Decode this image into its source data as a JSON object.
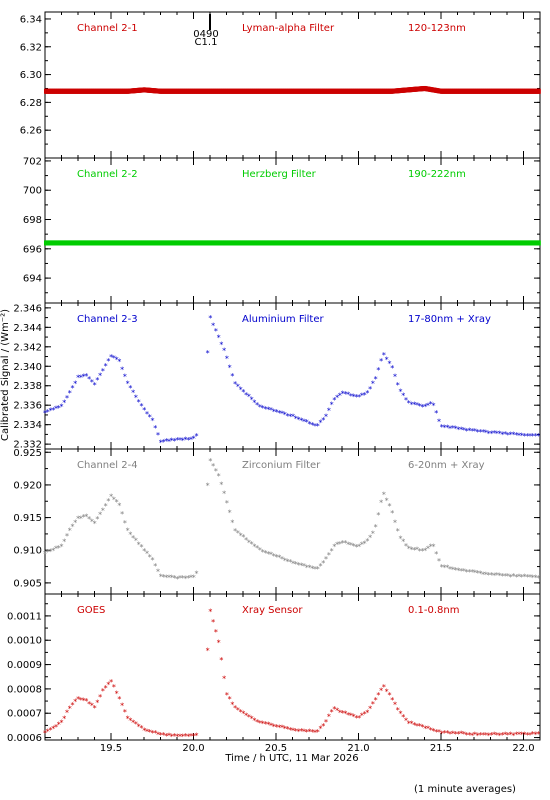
{
  "figure": {
    "ylabel": "Calibrated Signal / (Wm⁻²)",
    "xlabel": "Time / h UTC, 11 Mar 2026",
    "footnote": "(1 minute averages)",
    "flare_marker": {
      "time_label": "0490",
      "class_label": "C1.1",
      "x": 20.1
    }
  },
  "chart_data": [
    {
      "type": "scatter",
      "labels": {
        "channel": "Channel 2-1",
        "filter": "Lyman-alpha Filter",
        "band": "120-123nm"
      },
      "color": "#cc0000",
      "xlim": [
        19.1,
        22.1
      ],
      "ylim": [
        6.24,
        6.345
      ],
      "yticks": [
        "6.34",
        "6.32",
        "6.30",
        "6.28",
        "6.26"
      ],
      "ytick_values": [
        6.34,
        6.32,
        6.3,
        6.28,
        6.26
      ],
      "marker": "band",
      "series": [
        {
          "x": [
            19.1,
            19.6,
            19.7,
            19.8,
            21.2,
            21.4,
            21.45,
            21.5,
            22.1
          ],
          "y": [
            6.288,
            6.288,
            6.289,
            6.288,
            6.288,
            6.29,
            6.289,
            6.288,
            6.288
          ]
        }
      ]
    },
    {
      "type": "scatter",
      "labels": {
        "channel": "Channel 2-2",
        "filter": "Herzberg Filter",
        "band": "190-222nm"
      },
      "color": "#00cc00",
      "xlim": [
        19.1,
        22.1
      ],
      "ylim": [
        692.3,
        702.2
      ],
      "yticks": [
        "702",
        "700",
        "698",
        "696",
        "694"
      ],
      "ytick_values": [
        702,
        700,
        698,
        696,
        694
      ],
      "marker": "band",
      "series": [
        {
          "x": [
            19.1,
            20.0,
            20.5,
            21.0,
            21.5,
            22.1
          ],
          "y": [
            696.4,
            696.4,
            696.4,
            696.4,
            696.4,
            696.4
          ]
        }
      ]
    },
    {
      "type": "scatter",
      "labels": {
        "channel": "Channel 2-3",
        "filter": "Aluminium Filter",
        "band": "17-80nm + Xray"
      },
      "color": "#0000cc",
      "xlim": [
        19.1,
        22.1
      ],
      "ylim": [
        2.3315,
        2.3465
      ],
      "yticks": [
        "2.346",
        "2.344",
        "2.342",
        "2.340",
        "2.338",
        "2.336",
        "2.334",
        "2.332"
      ],
      "ytick_values": [
        2.346,
        2.344,
        2.342,
        2.34,
        2.338,
        2.336,
        2.334,
        2.332
      ],
      "marker": "star",
      "series": [
        {
          "x": [
            19.1,
            19.2,
            19.25,
            19.3,
            19.35,
            19.4,
            19.45,
            19.5,
            19.55,
            19.6,
            19.7,
            19.75,
            19.8,
            19.9,
            20.0,
            20.05,
            20.08,
            20.1,
            20.15,
            20.2,
            20.25,
            20.4,
            20.6,
            20.75,
            20.8,
            20.85,
            20.9,
            21.0,
            21.05,
            21.1,
            21.15,
            21.2,
            21.25,
            21.3,
            21.4,
            21.45,
            21.5,
            21.7,
            21.9,
            22.1
          ],
          "y": [
            2.3352,
            2.3358,
            2.3372,
            2.3388,
            2.339,
            2.338,
            2.3395,
            2.341,
            2.3405,
            2.3382,
            2.3355,
            2.3345,
            2.3322,
            2.3324,
            2.3325,
            2.3335,
            2.34,
            2.345,
            2.343,
            2.341,
            2.3382,
            2.3358,
            2.3348,
            2.3338,
            2.3348,
            2.3365,
            2.3372,
            2.3368,
            2.3372,
            2.3385,
            2.3412,
            2.34,
            2.3375,
            2.3362,
            2.3358,
            2.3362,
            2.3338,
            2.3333,
            2.333,
            2.3328
          ]
        }
      ]
    },
    {
      "type": "scatter",
      "labels": {
        "channel": "Channel 2-4",
        "filter": "Zirconium Filter",
        "band": "6-20nm + Xray"
      },
      "color": "#808080",
      "xlim": [
        19.1,
        22.1
      ],
      "ylim": [
        0.9033,
        0.9255
      ],
      "yticks": [
        "0.925",
        "0.920",
        "0.915",
        "0.910",
        "0.905"
      ],
      "ytick_values": [
        0.925,
        0.92,
        0.915,
        0.91,
        0.905
      ],
      "marker": "star",
      "series": [
        {
          "x": [
            19.1,
            19.2,
            19.25,
            19.3,
            19.35,
            19.4,
            19.45,
            19.5,
            19.55,
            19.6,
            19.7,
            19.75,
            19.8,
            19.9,
            20.0,
            20.05,
            20.08,
            20.1,
            20.15,
            20.2,
            20.25,
            20.4,
            20.6,
            20.75,
            20.8,
            20.85,
            20.9,
            21.0,
            21.05,
            21.1,
            21.15,
            21.2,
            21.25,
            21.3,
            21.4,
            21.45,
            21.5,
            21.7,
            21.9,
            22.1
          ],
          "y": [
            0.9095,
            0.9105,
            0.913,
            0.9148,
            0.9152,
            0.914,
            0.916,
            0.9182,
            0.917,
            0.913,
            0.91,
            0.9085,
            0.906,
            0.9056,
            0.9058,
            0.9075,
            0.9185,
            0.9237,
            0.9215,
            0.9175,
            0.913,
            0.91,
            0.908,
            0.907,
            0.9085,
            0.9105,
            0.9112,
            0.9105,
            0.9112,
            0.913,
            0.9188,
            0.916,
            0.912,
            0.9103,
            0.9098,
            0.9108,
            0.9075,
            0.9065,
            0.906,
            0.9058
          ]
        }
      ]
    },
    {
      "type": "scatter",
      "labels": {
        "channel": "GOES",
        "filter": "Xray Sensor",
        "band": "0.1-0.8nm"
      },
      "color": "#cc0000",
      "xlim": [
        19.1,
        22.1
      ],
      "ylim": [
        0.00059,
        0.00119
      ],
      "yticks": [
        "0.0011",
        "0.0010",
        "0.0009",
        "0.0008",
        "0.0007",
        "0.0006"
      ],
      "ytick_values": [
        0.0011,
        0.001,
        0.0009,
        0.0008,
        0.0007,
        0.0006
      ],
      "marker": "star",
      "series": [
        {
          "x": [
            19.1,
            19.2,
            19.25,
            19.3,
            19.35,
            19.4,
            19.45,
            19.5,
            19.55,
            19.6,
            19.7,
            19.75,
            19.8,
            19.9,
            20.0,
            20.05,
            20.08,
            20.1,
            20.15,
            20.2,
            20.25,
            20.4,
            20.6,
            20.75,
            20.8,
            20.85,
            20.9,
            21.0,
            21.05,
            21.1,
            21.15,
            21.2,
            21.25,
            21.3,
            21.4,
            21.45,
            21.5,
            21.7,
            21.9,
            22.1
          ],
          "y": [
            0.00062,
            0.00066,
            0.00072,
            0.00076,
            0.00075,
            0.00072,
            0.00079,
            0.00083,
            0.00076,
            0.00068,
            0.00063,
            0.00062,
            0.00061,
            0.000605,
            0.000605,
            0.00061,
            0.0009,
            0.00112,
            0.001,
            0.00078,
            0.00072,
            0.00066,
            0.00063,
            0.00062,
            0.00066,
            0.00072,
            0.0007,
            0.00068,
            0.0007,
            0.00075,
            0.00081,
            0.00076,
            0.0007,
            0.00066,
            0.00064,
            0.00063,
            0.00062,
            0.00061,
            0.00061,
            0.000615
          ]
        }
      ]
    }
  ],
  "xticks": [
    "19.5",
    "20.0",
    "20.5",
    "21.0",
    "21.5",
    "22.0"
  ],
  "xtick_values": [
    19.5,
    20.0,
    20.5,
    21.0,
    21.5,
    22.0
  ]
}
